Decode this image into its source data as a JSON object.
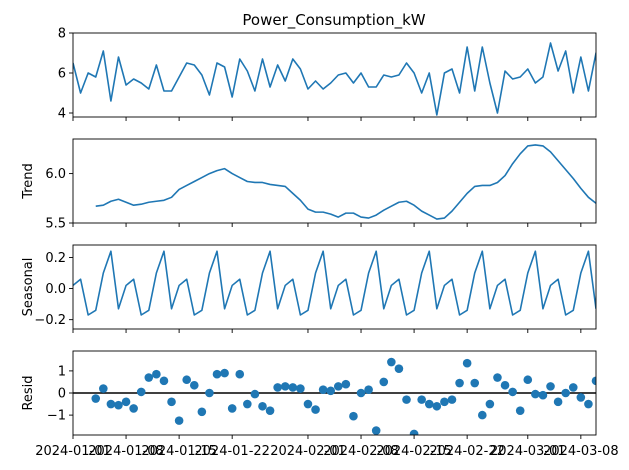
{
  "chart_data": [
    {
      "type": "line",
      "panel": "observed",
      "title": "Power_Consumption_kW",
      "ylabel": "",
      "ylim": [
        3.8,
        8.0
      ],
      "yticks": [
        4,
        6,
        8
      ],
      "color": "#1f77b4",
      "x_start": "2024-01-01",
      "values": [
        6.5,
        5.0,
        6.0,
        5.8,
        7.1,
        4.6,
        6.8,
        5.4,
        5.7,
        5.5,
        5.2,
        6.4,
        5.1,
        5.1,
        5.8,
        6.5,
        6.4,
        5.9,
        4.9,
        6.5,
        6.3,
        4.8,
        6.7,
        6.1,
        5.1,
        6.7,
        5.3,
        6.4,
        5.6,
        6.7,
        6.2,
        5.2,
        5.6,
        5.2,
        5.5,
        5.9,
        6.0,
        5.5,
        6.0,
        5.3,
        5.3,
        5.9,
        5.8,
        5.9,
        6.5,
        6.0,
        5.0,
        6.0,
        3.9,
        6.0,
        6.2,
        5.0,
        7.3,
        5.1,
        7.3,
        5.5,
        4.0,
        6.1,
        5.7,
        5.8,
        6.2,
        5.5,
        5.8,
        7.5,
        6.1,
        7.1,
        5.0,
        6.8,
        5.1,
        7.0,
        6.5,
        6.4,
        5.6,
        5.3,
        5.1,
        6.2,
        6.2,
        5.7,
        5.2,
        5.6,
        6.0,
        5.6,
        5.2,
        5.2,
        5.9,
        5.5,
        6.5,
        6.1,
        6.0,
        5.9,
        5.1,
        6.6,
        6.3,
        6.4,
        5.4,
        6.3,
        5.7,
        5.6,
        6.5,
        5.5,
        4.9,
        5.3,
        5.2,
        5.8,
        6.0,
        6.8,
        5.3,
        6.5,
        6.5,
        6.4,
        5.1,
        6.9,
        5.6,
        6.1,
        4.3,
        6.5,
        6.0,
        6.4,
        6.0,
        5.2,
        4.9,
        5.2,
        6.4,
        6.0,
        6.8,
        5.2,
        5.9,
        6.3,
        6.2,
        6.9,
        7.5,
        4.8,
        6.0,
        6.4,
        5.4,
        7.8,
        6.4,
        6.4,
        6.5,
        5.1,
        5.6,
        5.6,
        5.3,
        5.6,
        6.6,
        5.3,
        5.4,
        6.0,
        5.5,
        6.5
      ]
    },
    {
      "type": "line",
      "panel": "trend",
      "title": "",
      "ylabel": "Trend",
      "ylim": [
        5.5,
        6.35
      ],
      "yticks": [
        5.5,
        6.0
      ],
      "ytick_labels": [
        "5.5",
        "6.0"
      ],
      "color": "#1f77b4",
      "x_start": "2024-01-04",
      "values": [
        5.67,
        5.68,
        5.72,
        5.74,
        5.71,
        5.68,
        5.69,
        5.71,
        5.72,
        5.73,
        5.76,
        5.84,
        5.88,
        5.92,
        5.96,
        6.0,
        6.03,
        6.05,
        6.0,
        5.96,
        5.92,
        5.91,
        5.91,
        5.89,
        5.88,
        5.87,
        5.8,
        5.73,
        5.64,
        5.61,
        5.61,
        5.59,
        5.56,
        5.6,
        5.6,
        5.56,
        5.55,
        5.58,
        5.63,
        5.67,
        5.71,
        5.72,
        5.68,
        5.62,
        5.58,
        5.54,
        5.55,
        5.62,
        5.71,
        5.8,
        5.87,
        5.88,
        5.88,
        5.91,
        5.98,
        6.1,
        6.2,
        6.28,
        6.29,
        6.28,
        6.22,
        6.13,
        6.04,
        5.95,
        5.85,
        5.76,
        5.7,
        5.66,
        5.63,
        5.6,
        5.61,
        5.65,
        5.69,
        5.71,
        5.72,
        5.74,
        5.78,
        5.83,
        5.87,
        5.9,
        5.88,
        5.86,
        5.84,
        5.85,
        5.86,
        5.87,
        5.86,
        5.85,
        5.82,
        5.78,
        5.74,
        5.72,
        5.71,
        5.7,
        5.69,
        5.68,
        5.64,
        5.62,
        5.61,
        5.6,
        5.59,
        5.56,
        5.55,
        5.58,
        5.62,
        5.66,
        5.67,
        5.64,
        5.62,
        5.68,
        5.72,
        5.74,
        5.76,
        5.78,
        5.83,
        5.91,
        5.93,
        5.96,
        6.0,
        6.06,
        6.15,
        6.21,
        6.22,
        6.17,
        6.09,
        6.02,
        5.96,
        5.93,
        5.96,
        5.92,
        5.89,
        5.91
      ]
    },
    {
      "type": "line",
      "panel": "seasonal",
      "title": "",
      "ylabel": "Seasonal",
      "ylim": [
        -0.26,
        0.28
      ],
      "yticks": [
        -0.2,
        0.0,
        0.2
      ],
      "ytick_labels": [
        "−0.2",
        "0.0",
        "0.2"
      ],
      "color": "#1f77b4",
      "x_start": "2024-01-01",
      "pattern": [
        0.02,
        0.06,
        -0.17,
        -0.14,
        0.1,
        0.24,
        -0.13
      ],
      "values": []
    },
    {
      "type": "scatter",
      "panel": "resid",
      "title": "",
      "ylabel": "Resid",
      "ylim": [
        -1.9,
        1.9
      ],
      "yticks": [
        -1,
        0,
        1
      ],
      "ytick_labels": [
        "−1",
        "0",
        "1"
      ],
      "color": "#1f77b4",
      "x_start": "2024-01-04",
      "values": [
        -0.25,
        0.2,
        -0.5,
        -0.55,
        -0.4,
        -0.7,
        0.05,
        0.7,
        0.85,
        0.55,
        -0.4,
        -1.25,
        0.6,
        0.35,
        -0.85,
        0.0,
        0.85,
        0.9,
        -0.7,
        0.85,
        -0.5,
        -0.05,
        -0.6,
        -0.8,
        0.25,
        0.3,
        0.25,
        0.2,
        -0.5,
        -0.75,
        0.15,
        0.1,
        0.3,
        0.4,
        -1.05,
        0.0,
        0.15,
        -1.7,
        0.5,
        1.4,
        1.1,
        -0.3,
        -1.85,
        -0.3,
        -0.5,
        -0.6,
        -0.4,
        -0.3,
        0.45,
        1.35,
        0.45,
        -1.0,
        -0.5,
        0.7,
        0.35,
        0.05,
        -0.8,
        0.6,
        -0.05,
        -0.1,
        0.3,
        -0.4,
        0.0,
        0.25,
        -0.2,
        -0.5,
        0.55,
        -0.15,
        -0.35,
        -0.4,
        -0.2,
        0.05,
        -0.2,
        0.35,
        0.3,
        -0.9,
        0.25,
        0.4,
        -0.3,
        -0.05,
        0.4,
        0.45,
        0.75,
        -0.4,
        -0.1,
        -0.6,
        -0.3,
        0.2,
        0.25,
        0.7,
        -0.7,
        -1.05,
        0.35,
        -0.4,
        0.55,
        0.0,
        0.8,
        1.25,
        0.2,
        -0.35,
        -0.3,
        -0.95,
        -1.15,
        0.35,
        -0.25,
        -0.3,
        -0.55,
        0.7,
        0.75,
        -0.25,
        -0.15,
        0.1,
        0.55,
        0.5,
        1.1,
        -0.8,
        -1.05,
        0.25,
        -0.3,
        0.1,
        0.1,
        -0.4,
        0.3,
        0.3,
        -0.3,
        -0.1,
        -0.85,
        0.0,
        0.5,
        -1.2,
        0.2,
        1.8
      ]
    }
  ],
  "x_axis": {
    "tick_labels": [
      "2024-01-01",
      "2024-01-08",
      "2024-01-15",
      "2024-01-22",
      "2024-02-01",
      "2024-02-08",
      "2024-02-15",
      "2024-02-22",
      "2024-03-01",
      "2024-03-08"
    ],
    "tick_dates": [
      "2024-01-01",
      "2024-01-08",
      "2024-01-15",
      "2024-01-22",
      "2024-02-01",
      "2024-02-08",
      "2024-02-15",
      "2024-02-22",
      "2024-03-01",
      "2024-03-08"
    ],
    "xlim": [
      "2024-01-01",
      "2024-03-10"
    ]
  }
}
